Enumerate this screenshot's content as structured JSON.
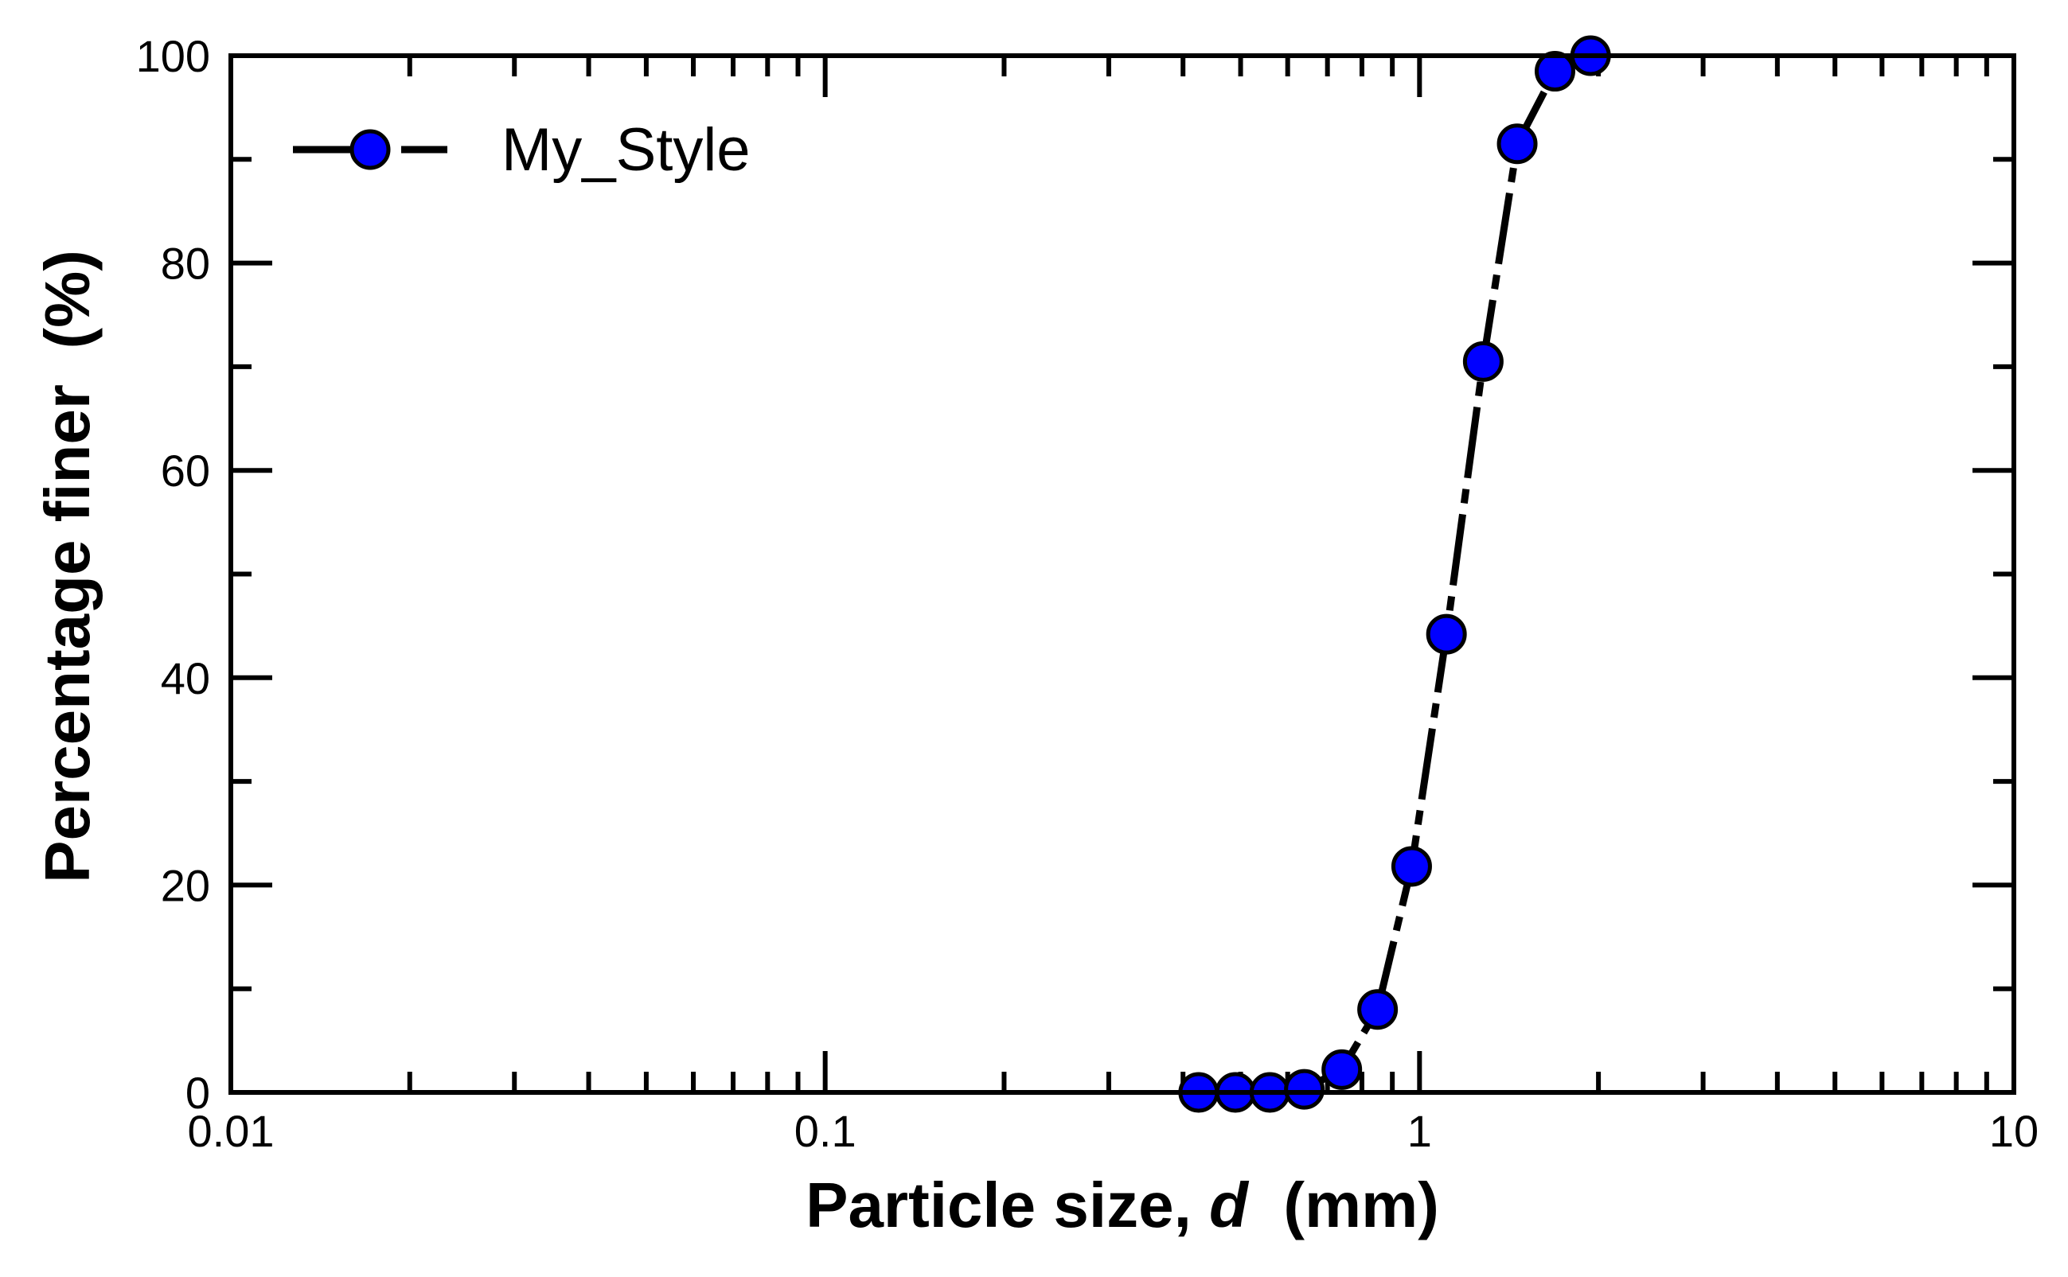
{
  "chart_data": {
    "type": "line",
    "xscale": "log",
    "xlim": [
      0.01,
      10
    ],
    "ylim": [
      0,
      100
    ],
    "xticks": [
      0.01,
      0.1,
      1,
      10
    ],
    "xtick_labels": [
      "0.01",
      "0.1",
      "1",
      "10"
    ],
    "yticks": [
      0,
      20,
      40,
      60,
      80,
      100
    ],
    "ytick_labels": [
      "0",
      "20",
      "40",
      "60",
      "80",
      "100"
    ],
    "xlabel_main": "Particle size, ",
    "xlabel_var": "d",
    "xlabel_unit": "  (mm)",
    "ylabel": "Percentage finer  (%)",
    "grid": false,
    "legend_position": "top-left",
    "series": [
      {
        "name": "My_Style",
        "color": "#0000ff",
        "line_color": "#000000",
        "line_style": "dash-dot",
        "marker": "circle",
        "x": [
          0.425,
          0.49,
          0.56,
          0.64,
          0.74,
          0.85,
          0.97,
          1.11,
          1.28,
          1.46,
          1.69,
          1.94
        ],
        "y": [
          0,
          0,
          0,
          0.3,
          2.2,
          8,
          21.8,
          44.2,
          70.5,
          91.5,
          98.5,
          100
        ]
      }
    ]
  }
}
